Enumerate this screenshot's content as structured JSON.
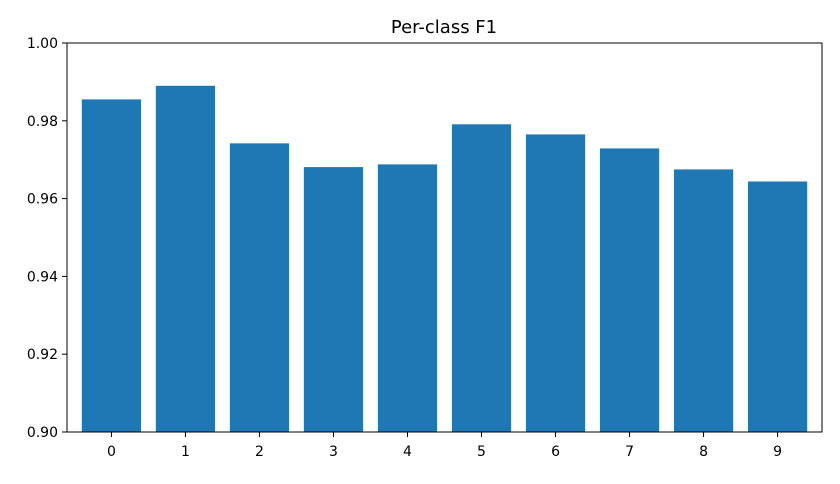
{
  "chart_data": {
    "type": "bar",
    "title": "Per-class F1",
    "xlabel": "",
    "ylabel": "",
    "categories": [
      "0",
      "1",
      "2",
      "3",
      "4",
      "5",
      "6",
      "7",
      "8",
      "9"
    ],
    "values": [
      0.9855,
      0.989,
      0.9742,
      0.9681,
      0.9688,
      0.9791,
      0.9765,
      0.9729,
      0.9675,
      0.9644
    ],
    "ylim": [
      0.9,
      1.0
    ],
    "yticks": [
      "0.90",
      "0.92",
      "0.94",
      "0.96",
      "0.98",
      "1.00"
    ],
    "ytick_values": [
      0.9,
      0.92,
      0.94,
      0.96,
      0.98,
      1.0
    ],
    "grid": false,
    "legend": "none",
    "bar_color": "#1f77b4"
  }
}
